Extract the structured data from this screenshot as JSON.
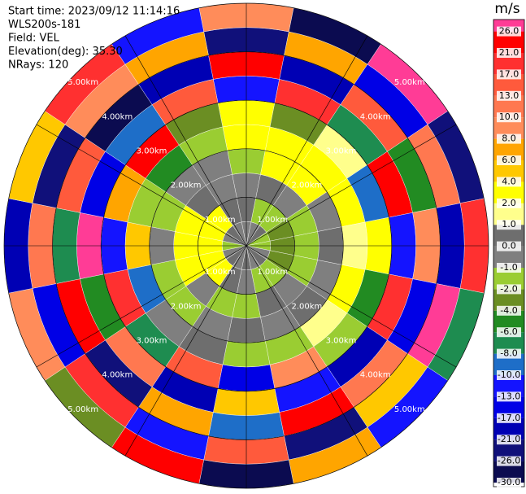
{
  "chart_data": {
    "type": "ppi",
    "header": [
      "Start time: 2023/09/12 11:14:16",
      "WLS200s-181",
      "Field: VEL",
      "Elevation(deg): 35.30",
      "NRays: 120"
    ],
    "rlim": [
      0,
      5
    ],
    "rings": [
      {
        "value": 1,
        "label": "1.00km"
      },
      {
        "value": 2,
        "label": "2.00km"
      },
      {
        "value": 3,
        "label": "3.00km"
      },
      {
        "value": 4,
        "label": "4.00km"
      },
      {
        "value": 5,
        "label": "5.00km"
      }
    ],
    "field": {
      "azimuths": [
        0,
        22.5,
        45,
        67.5,
        90,
        112.5,
        135,
        157.5,
        180,
        202.5,
        225,
        247.5,
        270,
        292.5,
        315,
        337.5
      ],
      "ranges": [
        0.25,
        0.75,
        1.25,
        1.75,
        2.25,
        2.75,
        3.25,
        3.75,
        4.25,
        4.75
      ],
      "values": [
        [
          -1,
          0,
          -1,
          -2,
          2,
          3,
          -13,
          21,
          -26,
          8
        ],
        [
          -1,
          -2,
          0,
          2,
          2,
          -4,
          17,
          -21,
          6,
          -30
        ],
        [
          0,
          -2,
          -1,
          2,
          2,
          1,
          -8,
          13,
          -17,
          26
        ],
        [
          -2,
          -4,
          -2,
          -1,
          2,
          -10,
          21,
          -6,
          10,
          -26
        ],
        [
          -2,
          -4,
          -2,
          0,
          1,
          2,
          -13,
          8,
          -21,
          17
        ],
        [
          -1,
          -4,
          -2,
          -1,
          2,
          -6,
          17,
          -17,
          26,
          -8
        ],
        [
          0,
          -2,
          -1,
          0,
          1,
          -2,
          -21,
          10,
          4,
          -13
        ],
        [
          -1,
          -2,
          0,
          -1,
          -2,
          8,
          -13,
          21,
          -26,
          6
        ],
        [
          0,
          -1,
          -2,
          0,
          -2,
          -17,
          4,
          -10,
          13,
          -30
        ],
        [
          -1,
          0,
          -2,
          -1,
          0,
          13,
          -21,
          6,
          -13,
          21
        ],
        [
          0,
          2,
          -1,
          -2,
          -1,
          -8,
          10,
          -26,
          17,
          -4
        ],
        [
          -1,
          2,
          2,
          -2,
          -10,
          17,
          -6,
          21,
          -17,
          8
        ],
        [
          -2,
          2,
          2,
          -1,
          4,
          -13,
          26,
          -8,
          10,
          -21
        ],
        [
          -1,
          2,
          2,
          -2,
          -2,
          6,
          -17,
          13,
          -26,
          4
        ],
        [
          0,
          2,
          0,
          -1,
          -6,
          21,
          -10,
          -30,
          8,
          17
        ],
        [
          -1,
          0,
          -1,
          -1,
          -2,
          -4,
          13,
          -21,
          6,
          -13
        ]
      ]
    },
    "colorbar": {
      "title": "m/s",
      "ticks": [
        {
          "value": -30,
          "label": "-30.0"
        },
        {
          "value": -26,
          "label": "-26.0"
        },
        {
          "value": -21,
          "label": "-21.0"
        },
        {
          "value": -17,
          "label": "-17.0"
        },
        {
          "value": -13,
          "label": "-13.0"
        },
        {
          "value": -10,
          "label": "-10.0"
        },
        {
          "value": -8,
          "label": "-8.0"
        },
        {
          "value": -6,
          "label": "-6.0"
        },
        {
          "value": -4,
          "label": "-4.0"
        },
        {
          "value": -2,
          "label": "-2.0"
        },
        {
          "value": -1,
          "label": "-1.0"
        },
        {
          "value": 0,
          "label": "0.0"
        },
        {
          "value": 1,
          "label": "1.0"
        },
        {
          "value": 2,
          "label": "2.0"
        },
        {
          "value": 4,
          "label": "4.0"
        },
        {
          "value": 6,
          "label": "6.0"
        },
        {
          "value": 8,
          "label": "8.0"
        },
        {
          "value": 10,
          "label": "10.0"
        },
        {
          "value": 13,
          "label": "13.0"
        },
        {
          "value": 17,
          "label": "17.0"
        },
        {
          "value": 21,
          "label": "21.0"
        },
        {
          "value": 26,
          "label": "26.0"
        }
      ],
      "colors": [
        "#0b0b50",
        "#10107a",
        "#0000b4",
        "#0000e6",
        "#1414ff",
        "#1e6ec8",
        "#1e8c50",
        "#228b22",
        "#6b8e23",
        "#9acd32",
        "#7f7f7f",
        "#6e6e6e",
        "#ffff8c",
        "#ffff00",
        "#ffc800",
        "#ffa500",
        "#ff8c5a",
        "#ff7850",
        "#ff5a3c",
        "#ff3030",
        "#ff0000",
        "#ff3c96"
      ]
    }
  }
}
